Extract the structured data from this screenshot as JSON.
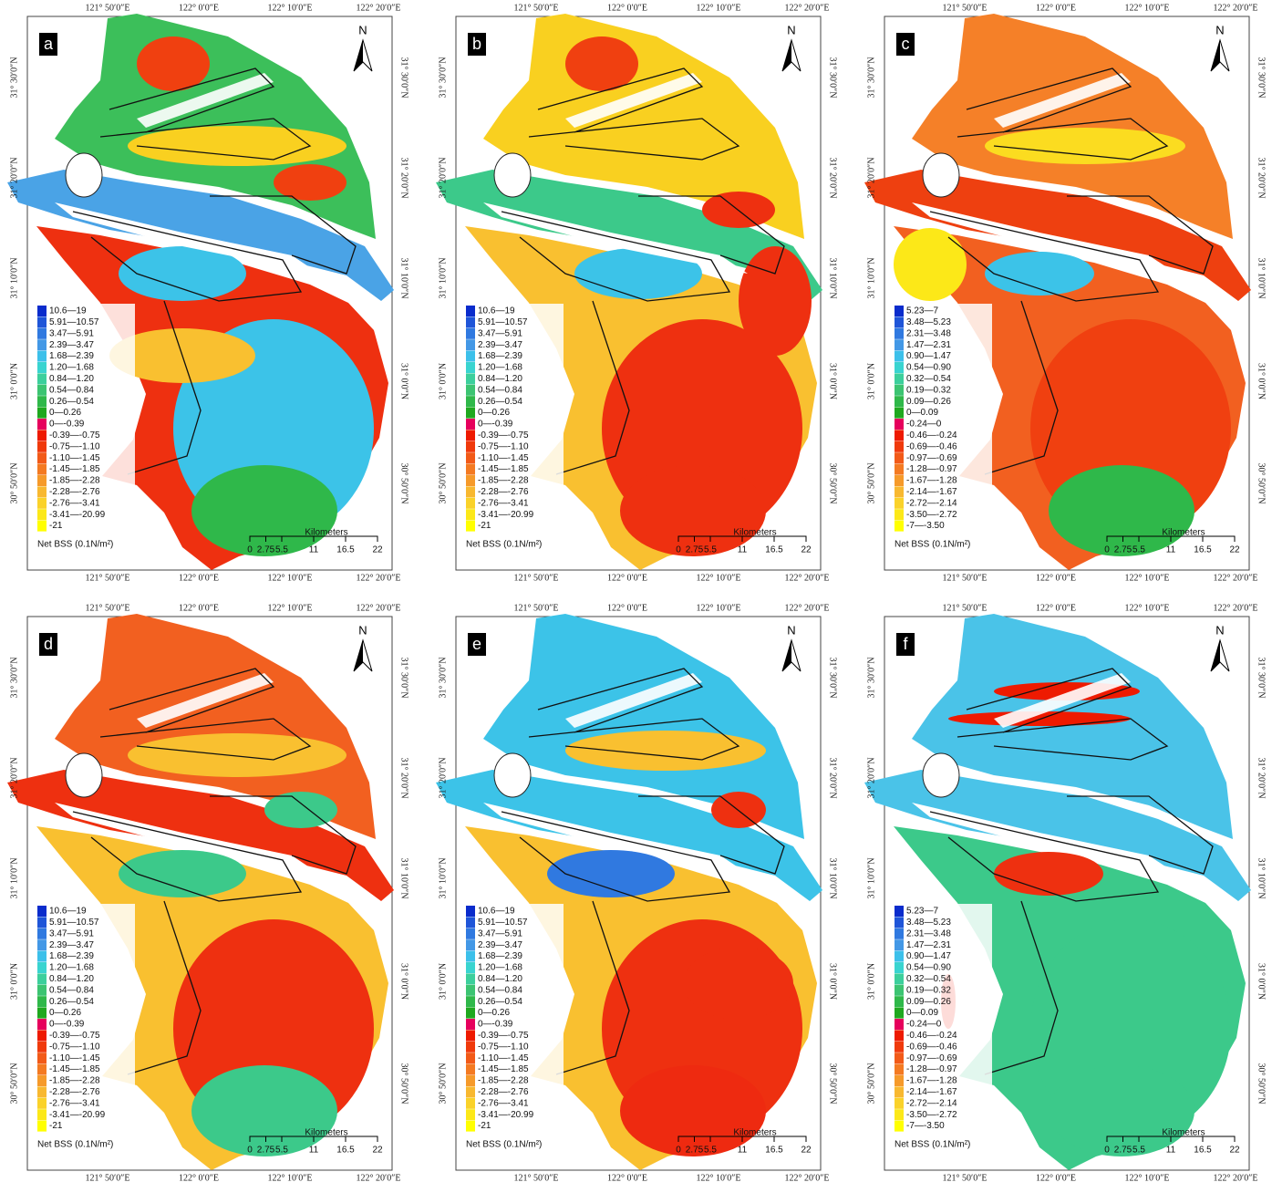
{
  "panels": [
    "a",
    "b",
    "c",
    "d",
    "e",
    "f"
  ],
  "longitudes": [
    "121° 50′0″E",
    "122° 0′0″E",
    "122° 10′0″E",
    "122° 20′0″E"
  ],
  "latitudes": [
    "31° 30′0″N",
    "31° 20′0″N",
    "31° 10′0″N",
    "31° 0′0″N",
    "30° 50′0″N"
  ],
  "north": "N",
  "scale": {
    "title": "Kilometers",
    "ticks": [
      "0",
      "2.75",
      "5.5",
      "11",
      "16.5",
      "22"
    ]
  },
  "legend_title": "Net BSS (0.1N/m²)",
  "legends": [
    {
      "panels": [
        "a",
        "b",
        "d",
        "e"
      ],
      "colors": [
        "#0a2ccc",
        "#1f55d8",
        "#3079e0",
        "#4398e6",
        "#3cc0ea",
        "#39d4d0",
        "#3ccf9c",
        "#3cc472",
        "#2fb84a",
        "#1fa81f",
        "#e6005c",
        "#ee1a00",
        "#f03a0c",
        "#f25a18",
        "#f47a22",
        "#f69a2a",
        "#f8b830",
        "#fad22a",
        "#fce818",
        "#ffff00"
      ],
      "items": [
        "10.6—19",
        "5.91—10.57",
        "3.47—5.91",
        "2.39—3.47",
        "1.68—2.39",
        "1.20—1.68",
        "0.84—1.20",
        "0.54—0.84",
        "0.26—0.54",
        "0—0.26",
        "0—-0.39",
        "-0.39—-0.75",
        "-0.75—-1.10",
        "-1.10—-1.45",
        "-1.45—-1.85",
        "-1.85—-2.28",
        "-2.28—-2.76",
        "-2.76—-3.41",
        "-3.41—-20.99",
        "-21"
      ]
    },
    {
      "panels": [
        "c",
        "f"
      ],
      "colors": [
        "#0a2ccc",
        "#1f55d8",
        "#3079e0",
        "#4398e6",
        "#3cc0ea",
        "#39d4d0",
        "#3ccf9c",
        "#3cc472",
        "#2fb84a",
        "#1fa81f",
        "#e6005c",
        "#ee1a00",
        "#f03a0c",
        "#f25a18",
        "#f47a22",
        "#f69a2a",
        "#f8b830",
        "#fad22a",
        "#fce818",
        "#ffff00"
      ],
      "items": [
        "5.23—7",
        "3.48—5.23",
        "2.31—3.48",
        "1.47—2.31",
        "0.90—1.47",
        "0.54—0.90",
        "0.32—0.54",
        "0.19—0.32",
        "0.09—0.26",
        "0—0.09",
        "-0.24—0",
        "-0.46—-0.24",
        "-0.69—-0.46",
        "-0.97—-0.69",
        "-1.28—-0.97",
        "-1.67—-1.28",
        "-2.14—-1.67",
        "-2.72—-2.14",
        "-3.50—-2.72",
        "-7—-3.50"
      ]
    }
  ]
}
